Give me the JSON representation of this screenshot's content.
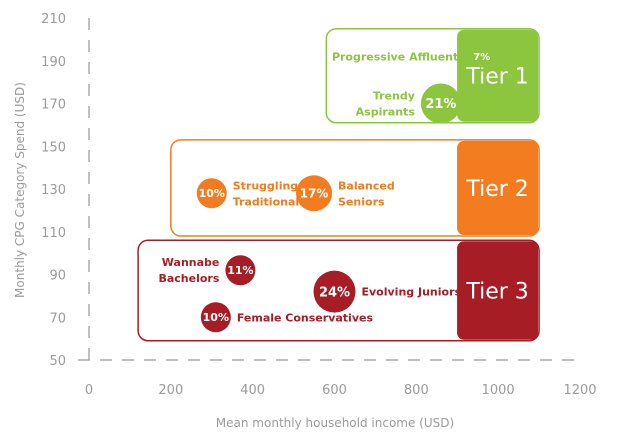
{
  "chart_data": {
    "type": "scatter",
    "xlabel": "Mean monthly household income (USD)",
    "ylabel": "Monthly CPG Category Spend (USD)",
    "xlim": [
      0,
      1200
    ],
    "ylim": [
      50,
      210
    ],
    "x_ticks": [
      "0",
      "200",
      "400",
      "600",
      "800",
      "1000",
      "1200"
    ],
    "y_ticks": [
      "50",
      "70",
      "90",
      "110",
      "130",
      "150",
      "170",
      "190",
      "210"
    ],
    "grid": false,
    "colors": {
      "tier1": "#8cc63f",
      "tier2": "#f47c20",
      "tier3": "#a71d25"
    },
    "tiers": [
      {
        "label": "Tier 1",
        "color": "#8cc63f",
        "x_range": [
          580,
          1100
        ],
        "y_range": [
          161,
          205
        ]
      },
      {
        "label": "Tier 2",
        "color": "#f47c20",
        "x_range": [
          200,
          1100
        ],
        "y_range": [
          108,
          153
        ]
      },
      {
        "label": "Tier 3",
        "color": "#a71d25",
        "x_range": [
          120,
          1100
        ],
        "y_range": [
          59,
          106
        ]
      }
    ],
    "points": [
      {
        "name": "Progressive Affluents",
        "pct": "7%",
        "x": 960,
        "y": 192,
        "tier": 0,
        "r": 11,
        "label_side": "left",
        "fs": 10
      },
      {
        "name": "Trendy Aspirants",
        "pct": "21%",
        "x": 860,
        "y": 170,
        "tier": 0,
        "r": 20,
        "label_side": "left",
        "fs": 13
      },
      {
        "name": "Struggling Traditionals",
        "pct": "10%",
        "x": 300,
        "y": 128,
        "tier": 1,
        "r": 15,
        "label_side": "right",
        "fs": 11
      },
      {
        "name": "Balanced Seniors",
        "pct": "17%",
        "x": 550,
        "y": 128,
        "tier": 1,
        "r": 18,
        "label_side": "right",
        "fs": 12
      },
      {
        "name": "Wannabe Bachelors",
        "pct": "11%",
        "x": 370,
        "y": 92,
        "tier": 2,
        "r": 15,
        "label_side": "left",
        "fs": 11
      },
      {
        "name": "Evolving Juniors",
        "pct": "24%",
        "x": 600,
        "y": 82,
        "tier": 2,
        "r": 21,
        "label_side": "right",
        "fs": 13
      },
      {
        "name": "Female Conservatives",
        "pct": "10%",
        "x": 310,
        "y": 70,
        "tier": 2,
        "r": 15,
        "label_side": "right",
        "fs": 11
      }
    ]
  }
}
